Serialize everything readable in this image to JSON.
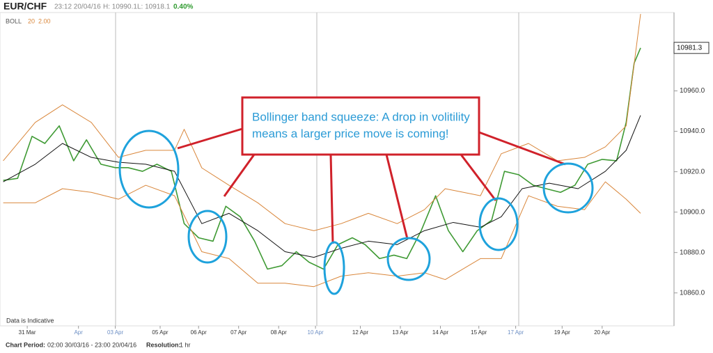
{
  "chart_data": {
    "type": "line",
    "title": "EUR/CHF",
    "header": {
      "time": "23:12 20/04/16",
      "high": "H: 10990.1",
      "low": "L: 10918.1",
      "change": "0.4",
      "change_pct": "0%"
    },
    "indicator": {
      "name": "BOLL",
      "period": "20",
      "width": "2.00"
    },
    "annotation": [
      "Bollinger band squeeze: A drop in volitility",
      "means a larger price move is coming!"
    ],
    "note": "Data is Indicative",
    "footer": {
      "period_label": "Chart Period:",
      "period": "02:00 30/03/16 - 23:00 20/04/16",
      "resolution_label": "Resolution:",
      "resolution": "1 hr"
    },
    "xlim": [
      0,
      420
    ],
    "xticks": [
      {
        "value": 17,
        "label": "31 Mar"
      },
      {
        "value": 49,
        "label": "Apr"
      },
      {
        "value": 72,
        "label": "03 Apr"
      },
      {
        "value": 100,
        "label": "05 Apr"
      },
      {
        "value": 124,
        "label": "06 Apr"
      },
      {
        "value": 149,
        "label": "07 Apr"
      },
      {
        "value": 174,
        "label": "08 Apr"
      },
      {
        "value": 197,
        "label": "10 Apr"
      },
      {
        "value": 225,
        "label": "12 Apr"
      },
      {
        "value": 250,
        "label": "13 Apr"
      },
      {
        "value": 275,
        "label": "14 Apr"
      },
      {
        "value": 299,
        "label": "15 Apr"
      },
      {
        "value": 322,
        "label": "17 Apr"
      },
      {
        "value": 351,
        "label": "19 Apr"
      },
      {
        "value": 376,
        "label": "20 Apr"
      }
    ],
    "xtick_colors": [
      "#333",
      "#6c8ec4",
      "#6c8ec4",
      "#333",
      "#333",
      "#333",
      "#333",
      "#6c8ec4",
      "#333",
      "#333",
      "#333",
      "#333",
      "#6c8ec4",
      "#333",
      "#333"
    ],
    "ylim": [
      10843.7,
      10998.8
    ],
    "yticks": [
      {
        "value": 10860,
        "label": "10860.0"
      },
      {
        "value": 10880,
        "label": "10880.0"
      },
      {
        "value": 10900,
        "label": "10900.0"
      },
      {
        "value": 10920,
        "label": "10920.0"
      },
      {
        "value": 10940,
        "label": "10940.0"
      },
      {
        "value": 10960,
        "label": "10960.0"
      }
    ],
    "grid": false,
    "series": [
      {
        "color": "#3f9a34",
        "width": 1.6,
        "x": [
          2,
          11,
          20,
          28,
          37,
          46,
          54,
          63,
          72,
          80,
          89,
          98,
          107,
          115,
          124,
          133,
          141,
          150,
          159,
          167,
          176,
          185,
          193,
          202,
          211,
          220,
          228,
          237,
          246,
          254,
          263,
          272,
          280,
          289,
          298,
          307,
          315,
          324,
          333,
          341,
          350,
          359,
          367,
          376,
          385,
          391,
          396,
          400
        ],
        "values": [
          10915.7,
          10916.7,
          10937.5,
          10934,
          10942.7,
          10925.4,
          10935.8,
          10923.7,
          10922,
          10922,
          10920.2,
          10923.7,
          10920.2,
          10894.3,
          10887.3,
          10885.6,
          10902.9,
          10897.7,
          10885.6,
          10871.8,
          10873.5,
          10880.4,
          10875.2,
          10871.8,
          10883.9,
          10887.3,
          10883.9,
          10877,
          10878.7,
          10877,
          10890.8,
          10908.1,
          10890.8,
          10880.4,
          10890.8,
          10896,
          10920.2,
          10918.5,
          10913.3,
          10911.6,
          10909.8,
          10913.3,
          10923.7,
          10926.1,
          10925.4,
          10944.4,
          10973.8,
          10981.3
        ]
      },
      {
        "color": "#111111",
        "width": 1,
        "x": [
          2,
          22,
          39,
          57,
          74,
          91,
          109,
          126,
          143,
          161,
          178,
          196,
          213,
          230,
          248,
          265,
          283,
          300,
          313,
          326,
          343,
          361,
          378,
          391,
          400
        ],
        "values": [
          10915,
          10923.7,
          10934,
          10927.1,
          10924.7,
          10923.7,
          10920.2,
          10894.3,
          10899.4,
          10890.8,
          10880.4,
          10877.6,
          10882.1,
          10885.6,
          10883.9,
          10890.8,
          10894.9,
          10892.5,
          10897.7,
          10911.6,
          10914.3,
          10911.6,
          10920.2,
          10930.6,
          10947.9
        ]
      },
      {
        "color": "#d9863a",
        "width": 1,
        "x": [
          2,
          22,
          39,
          57,
          74,
          91,
          109,
          115,
          126,
          143,
          161,
          178,
          196,
          213,
          230,
          248,
          265,
          278,
          300,
          313,
          330,
          348,
          365,
          378,
          391,
          400
        ],
        "values": [
          10925.4,
          10944.4,
          10953.1,
          10944.4,
          10927.1,
          10930.6,
          10930.6,
          10941,
          10921.9,
          10913.3,
          10904.6,
          10894.3,
          10890.8,
          10894.3,
          10899.4,
          10894.3,
          10901.2,
          10911.6,
          10908.1,
          10928.9,
          10934,
          10925.4,
          10927.1,
          10932.3,
          10942.7,
          10998.1
        ]
      },
      {
        "color": "#d9863a",
        "width": 1,
        "x": [
          2,
          22,
          39,
          57,
          74,
          91,
          109,
          126,
          143,
          161,
          178,
          196,
          213,
          230,
          248,
          265,
          278,
          300,
          313,
          330,
          348,
          365,
          378,
          391,
          400
        ],
        "values": [
          10904.6,
          10904.6,
          10911.6,
          10909.8,
          10906.4,
          10913.3,
          10908.1,
          10880.4,
          10877,
          10864.8,
          10864.8,
          10863.1,
          10868.3,
          10870,
          10868.3,
          10870,
          10866.6,
          10877,
          10877,
          10908.1,
          10902.9,
          10901.2,
          10915,
          10906.4,
          10899.4
        ]
      }
    ]
  }
}
